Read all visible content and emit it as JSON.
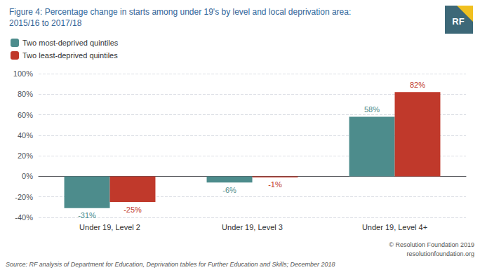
{
  "chart_data": {
    "type": "bar",
    "title": "Figure 4: Percentage change in starts among under 19's by level and local deprivation area:",
    "subtitle": "2015/16 to 2017/18",
    "categories": [
      "Under 19, Level 2",
      "Under 19, Level 3",
      "Under 19, Level 4+"
    ],
    "series": [
      {
        "name": "Two most-deprived quintiles",
        "color": "#4d8c8c",
        "values": [
          -31,
          -6,
          58
        ],
        "value_labels": [
          "-31%",
          "-6%",
          "58%"
        ]
      },
      {
        "name": "Two least-deprived quintiles",
        "color": "#c0392b",
        "values": [
          -25,
          -1,
          82
        ],
        "value_labels": [
          "-25%",
          "-1%",
          "82%"
        ]
      }
    ],
    "ylim": [
      -40,
      100
    ],
    "yticks": [
      {
        "value": -40,
        "label": "-40%"
      },
      {
        "value": -20,
        "label": "-20%"
      },
      {
        "value": 0,
        "label": "0%"
      },
      {
        "value": 20,
        "label": "20%"
      },
      {
        "value": 40,
        "label": "40%"
      },
      {
        "value": 60,
        "label": "60%"
      },
      {
        "value": 80,
        "label": "80%"
      },
      {
        "value": 100,
        "label": "100%"
      }
    ],
    "grid": true,
    "legend": "upper left",
    "data_labels": true,
    "annotations": [
      "Source: RF analysis of Department for Education, Deprivation tables for Further Education and Skills; December 2018",
      "© Resolution Foundation 2019",
      "resolutionfoundation.org",
      "RF"
    ]
  }
}
